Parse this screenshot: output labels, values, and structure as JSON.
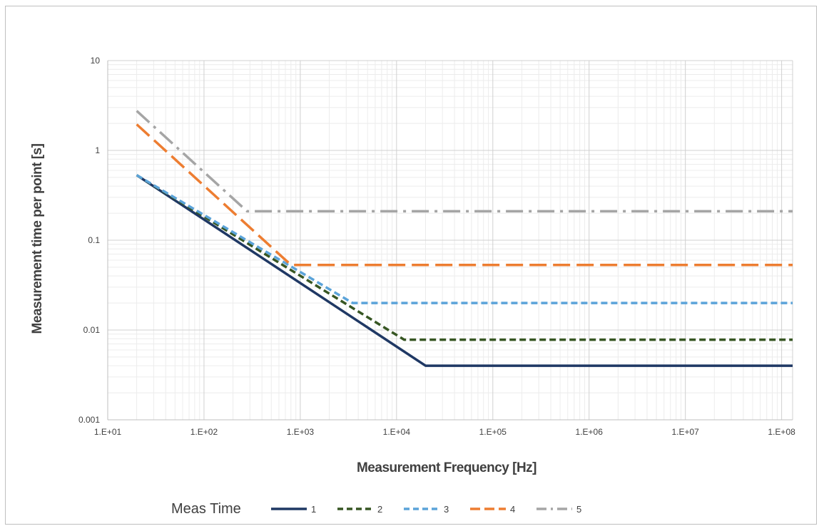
{
  "chart_data": {
    "type": "line",
    "title": "",
    "xlabel": "Measurement Frequency [Hz]",
    "ylabel": "Measurement time per point [s]",
    "xscale": "log",
    "yscale": "log",
    "xlim": [
      10,
      130000000
    ],
    "ylim": [
      0.001,
      10
    ],
    "x_ticks": [
      10,
      100,
      1000,
      10000,
      100000,
      1000000,
      10000000,
      100000000
    ],
    "x_tick_labels": [
      "1.E+01",
      "1.E+02",
      "1.E+03",
      "1.E+04",
      "1.E+05",
      "1.E+06",
      "1.E+07",
      "1.E+08"
    ],
    "y_ticks": [
      0.001,
      0.01,
      0.1,
      1,
      10
    ],
    "y_tick_labels": [
      "0.001",
      "0.01",
      "0.1",
      "1",
      "10"
    ],
    "grid": true,
    "minor_grid": true,
    "legend": {
      "title": "Meas Time",
      "placement": "bottom"
    },
    "series": [
      {
        "name": "1",
        "color": "#1f3864",
        "dash": "solid",
        "points": [
          [
            20,
            0.53
          ],
          [
            20000,
            0.004
          ],
          [
            130000000,
            0.004
          ]
        ]
      },
      {
        "name": "2",
        "color": "#375623",
        "dash": "dash",
        "points": [
          [
            20,
            0.53
          ],
          [
            12000,
            0.0078
          ],
          [
            130000000,
            0.0078
          ]
        ]
      },
      {
        "name": "3",
        "color": "#5ba3d9",
        "dash": "dash",
        "points": [
          [
            20,
            0.53
          ],
          [
            3500,
            0.02
          ],
          [
            130000000,
            0.02
          ]
        ]
      },
      {
        "name": "4",
        "color": "#ed7d31",
        "dash": "longdash",
        "points": [
          [
            20,
            1.95
          ],
          [
            800,
            0.053
          ],
          [
            130000000,
            0.053
          ]
        ]
      },
      {
        "name": "5",
        "color": "#a5a5a5",
        "dash": "dashdot",
        "points": [
          [
            20,
            2.75
          ],
          [
            280,
            0.21
          ],
          [
            130000000,
            0.21
          ]
        ]
      }
    ]
  }
}
